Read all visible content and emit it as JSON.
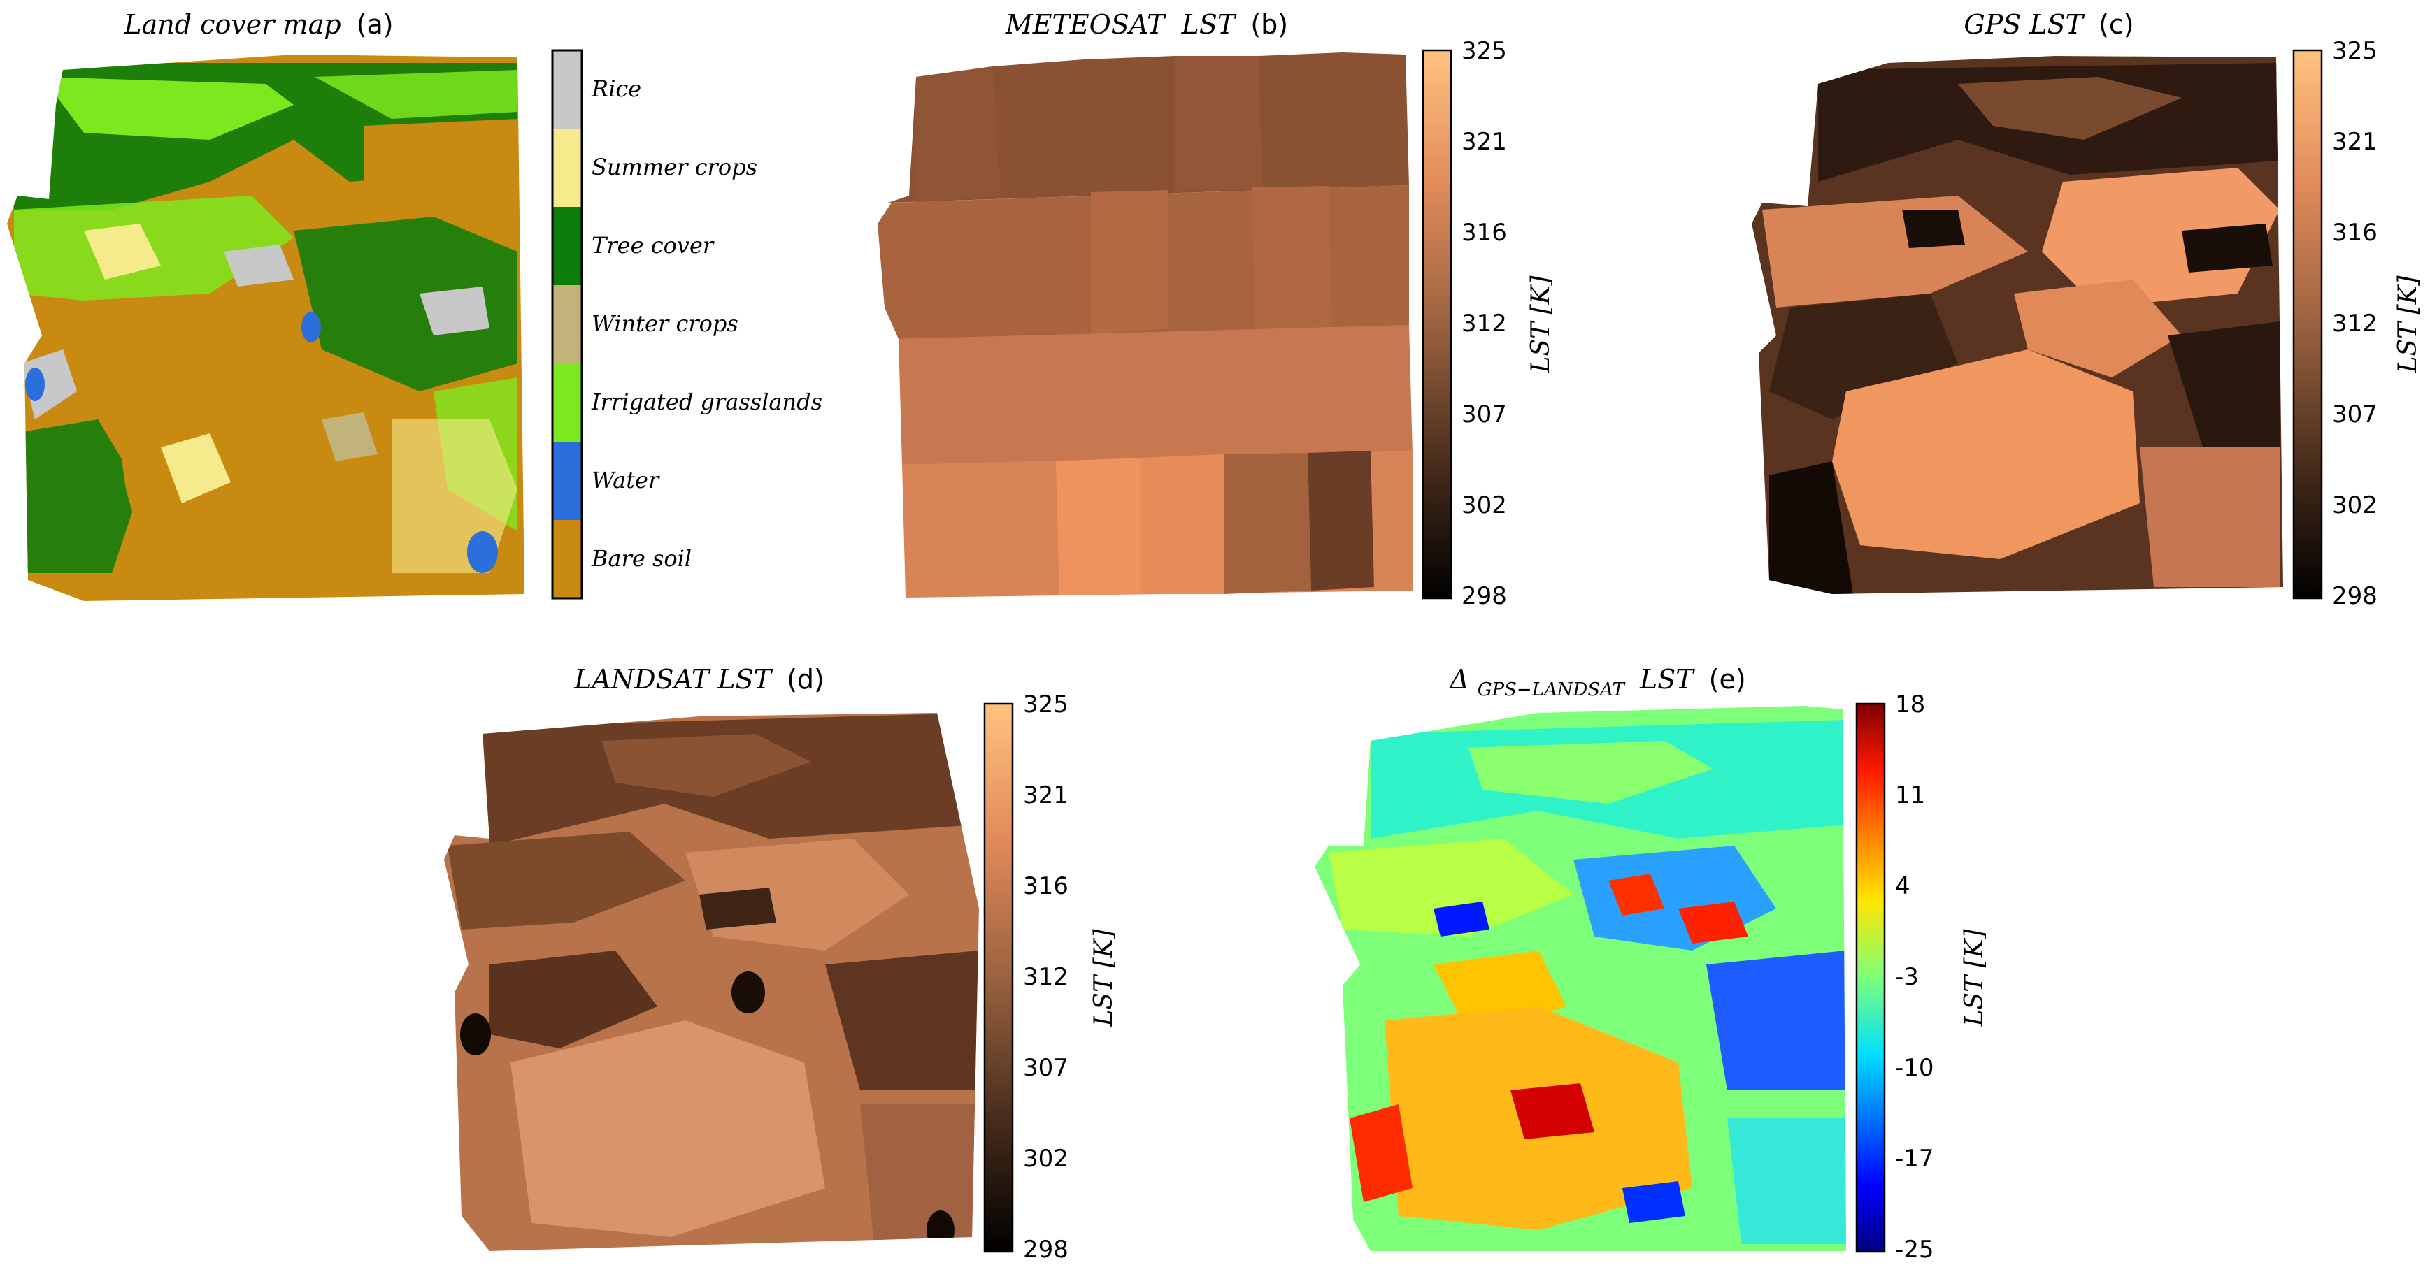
{
  "chart_data": [
    {
      "type": "heatmap",
      "panel": "(a)",
      "title": "Land cover map",
      "legend": {
        "placement": "right",
        "entries": [
          {
            "label": "Rice",
            "color": "#c8c8c8"
          },
          {
            "label": "Summer crops",
            "color": "#f6eb8c"
          },
          {
            "label": "Tree cover",
            "color": "#0a7d0a"
          },
          {
            "label": "Winter crops",
            "color": "#c2b37a"
          },
          {
            "label": "Irrigated grasslands",
            "color": "#7ee81e"
          },
          {
            "label": "Water",
            "color": "#2a6fdc"
          },
          {
            "label": "Bare soil",
            "color": "#c88a10"
          }
        ]
      }
    },
    {
      "type": "heatmap",
      "panel": "(b)",
      "title": "METEOSAT  LST",
      "colorbar": {
        "label": "LST [K]",
        "ticks": [
          "325",
          "321",
          "316",
          "312",
          "307",
          "302",
          "298"
        ],
        "range": [
          298,
          325
        ],
        "colormap": "copper"
      }
    },
    {
      "type": "heatmap",
      "panel": "(c)",
      "title": "GPS LST",
      "colorbar": {
        "label": "LST [K]",
        "ticks": [
          "325",
          "321",
          "316",
          "312",
          "307",
          "302",
          "298"
        ],
        "range": [
          298,
          325
        ],
        "colormap": "copper"
      }
    },
    {
      "type": "heatmap",
      "panel": "(d)",
      "title": "LANDSAT LST",
      "colorbar": {
        "label": "LST [K]",
        "ticks": [
          "325",
          "321",
          "316",
          "312",
          "307",
          "302",
          "298"
        ],
        "range": [
          298,
          325
        ],
        "colormap": "copper"
      }
    },
    {
      "type": "heatmap",
      "panel": "(e)",
      "title_main": "Δ",
      "title_sub": "GPS−LANDSAT",
      "title_tail": "LST",
      "colorbar": {
        "label": "LST [K]",
        "ticks": [
          "18",
          "11",
          "4",
          "-3",
          "-10",
          "-17",
          "-25"
        ],
        "range": [
          -25,
          18
        ],
        "colormap": "jet"
      }
    }
  ]
}
